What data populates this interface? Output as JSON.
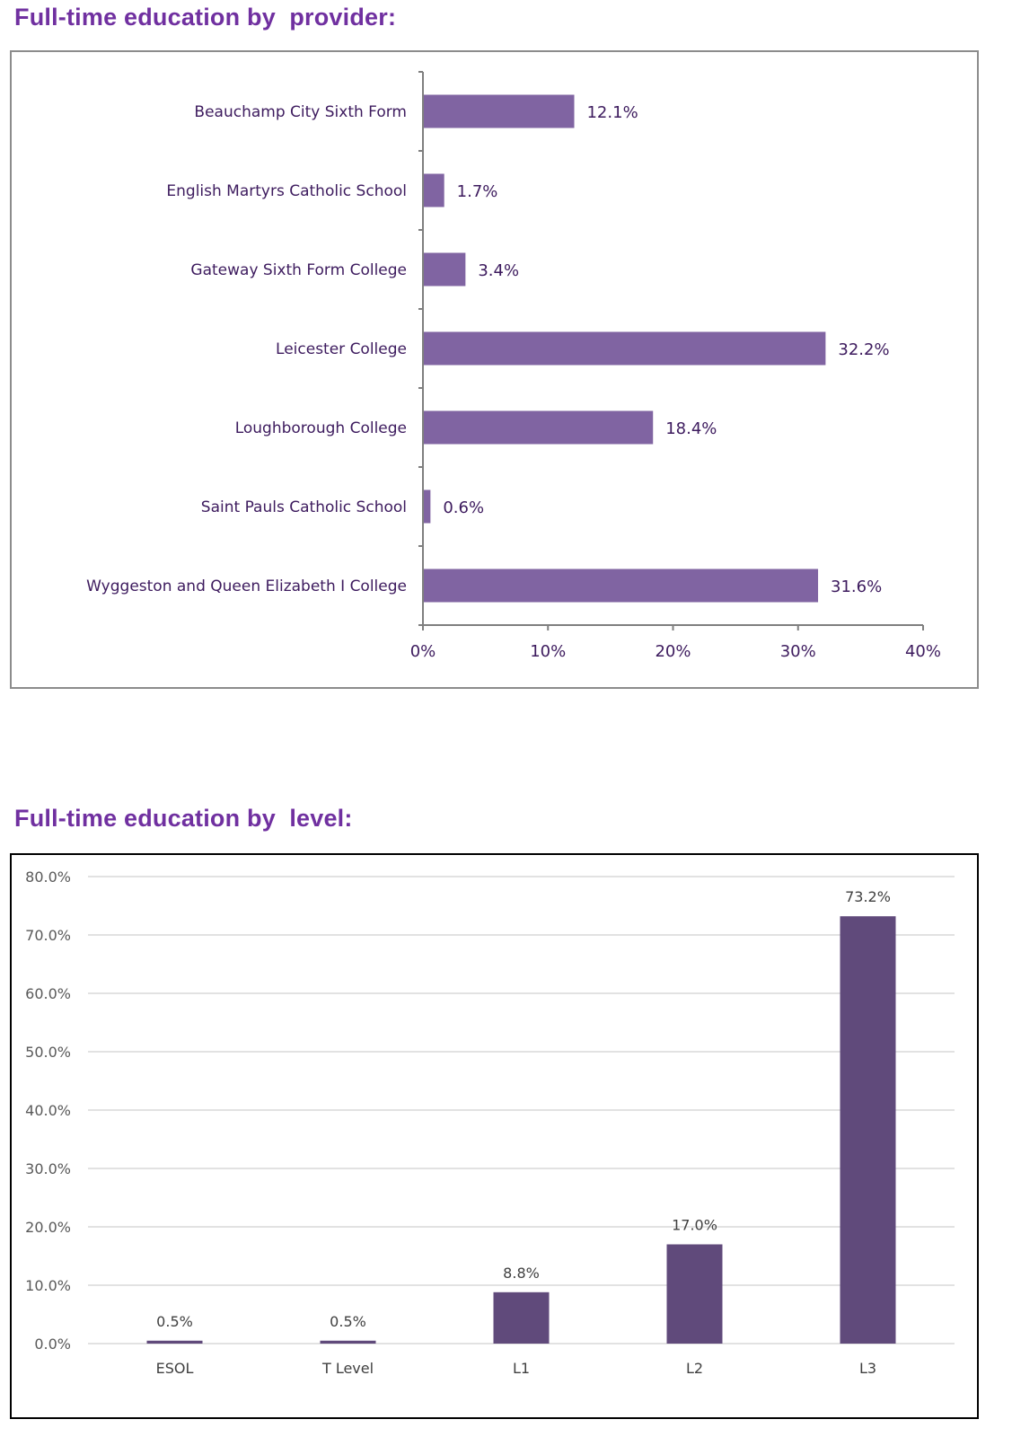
{
  "sections": {
    "provider_title": "Full-time education by  provider:",
    "level_title": "Full-time education by  level:"
  },
  "colors": {
    "title": "#7030a0",
    "provider_bar": "#8064a2",
    "level_bar": "#604a7b",
    "text_dark": "#3d1b5e",
    "gridline": "#d9d9d9"
  },
  "chart_data": [
    {
      "type": "bar",
      "orientation": "horizontal",
      "categories": [
        "Beauchamp City Sixth Form",
        "English Martyrs Catholic School",
        "Gateway Sixth Form College",
        "Leicester College",
        "Loughborough College",
        "Saint Pauls Catholic School",
        "Wyggeston and Queen Elizabeth I College"
      ],
      "values": [
        12.1,
        1.7,
        3.4,
        32.2,
        18.4,
        0.6,
        31.6
      ],
      "value_labels": [
        "12.1%",
        "1.7%",
        "3.4%",
        "32.2%",
        "18.4%",
        "0.6%",
        "31.6%"
      ],
      "xlim": [
        0,
        40
      ],
      "x_ticks": [
        0,
        10,
        20,
        30,
        40
      ],
      "x_tick_labels": [
        "0%",
        "10%",
        "20%",
        "30%",
        "40%"
      ],
      "grid": false,
      "legend": "none"
    },
    {
      "type": "bar",
      "orientation": "vertical",
      "categories": [
        "ESOL",
        "T Level",
        "L1",
        "L2",
        "L3"
      ],
      "values": [
        0.5,
        0.5,
        8.8,
        17.0,
        73.2
      ],
      "value_labels": [
        "0.5%",
        "0.5%",
        "8.8%",
        "17.0%",
        "73.2%"
      ],
      "ylim": [
        0,
        80
      ],
      "y_ticks": [
        0,
        10,
        20,
        30,
        40,
        50,
        60,
        70,
        80
      ],
      "y_tick_labels": [
        "0.0%",
        "10.0%",
        "20.0%",
        "30.0%",
        "40.0%",
        "50.0%",
        "60.0%",
        "70.0%",
        "80.0%"
      ],
      "grid": true,
      "legend": "none"
    }
  ]
}
